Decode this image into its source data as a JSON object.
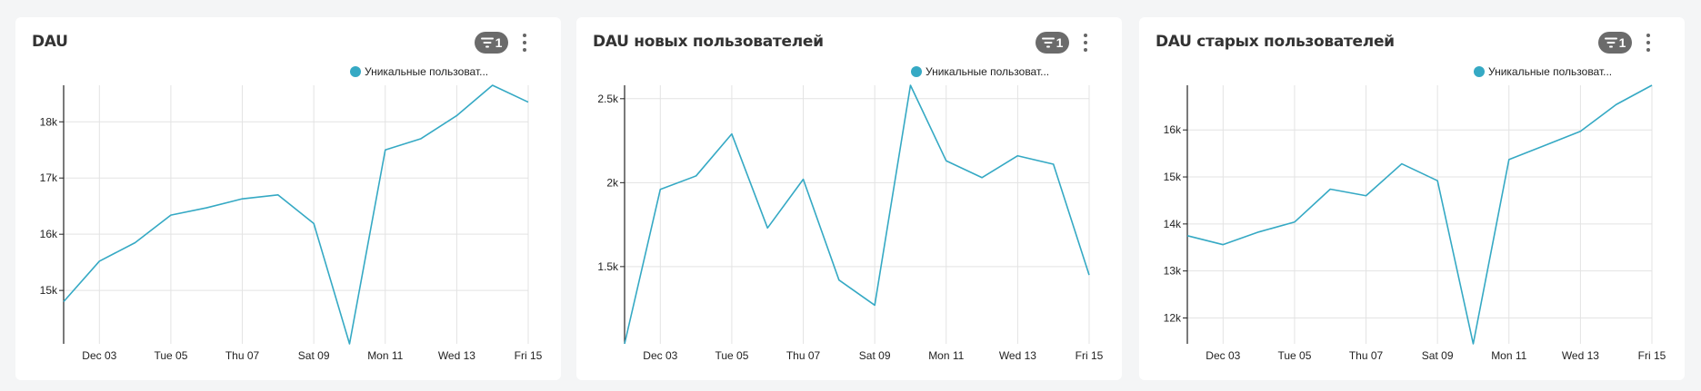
{
  "legend_label": "Уникальные пользоват...",
  "filter_count": "1",
  "colors": {
    "line": "#35a9c4",
    "grid": "#e3e3e3",
    "axis": "#222222"
  },
  "chart_data": [
    {
      "type": "line",
      "title": "DAU",
      "x_ticks": [
        "Dec 03",
        "Tue 05",
        "Thu 07",
        "Sat 09",
        "Mon 11",
        "Wed 13",
        "Fri 15"
      ],
      "x_tick_positions": [
        1,
        3,
        5,
        7,
        9,
        11,
        13
      ],
      "x_range": [
        0,
        13
      ],
      "y_ticks": [
        15000,
        16000,
        17000,
        18000
      ],
      "y_tick_labels": [
        "15k",
        "16k",
        "17k",
        "18k"
      ],
      "ylim": [
        14050,
        18650
      ],
      "series": [
        {
          "name": "Уникальные пользоват...",
          "values": [
            14800,
            15520,
            15850,
            16340,
            16470,
            16630,
            16700,
            16190,
            14050,
            17500,
            17700,
            18110,
            18650,
            18350
          ]
        }
      ]
    },
    {
      "type": "line",
      "title": "DAU новых пользователей",
      "x_ticks": [
        "Dec 03",
        "Tue 05",
        "Thu 07",
        "Sat 09",
        "Mon 11",
        "Wed 13",
        "Fri 15"
      ],
      "x_tick_positions": [
        1,
        3,
        5,
        7,
        9,
        11,
        13
      ],
      "x_range": [
        0,
        13
      ],
      "y_ticks": [
        1500,
        2000,
        2500
      ],
      "y_tick_labels": [
        "1.5k",
        "2k",
        "2.5k"
      ],
      "ylim": [
        1040,
        2580
      ],
      "series": [
        {
          "name": "Уникальные пользоват...",
          "values": [
            1040,
            1960,
            2040,
            2290,
            1730,
            2020,
            1420,
            1270,
            2580,
            2130,
            2030,
            2160,
            2110,
            1450
          ]
        }
      ]
    },
    {
      "type": "line",
      "title": "DAU старых пользователей",
      "x_ticks": [
        "Dec 03",
        "Tue 05",
        "Thu 07",
        "Sat 09",
        "Mon 11",
        "Wed 13",
        "Fri 15"
      ],
      "x_tick_positions": [
        1,
        3,
        5,
        7,
        9,
        11,
        13
      ],
      "x_range": [
        0,
        13
      ],
      "y_ticks": [
        12000,
        13000,
        14000,
        15000,
        16000
      ],
      "y_tick_labels": [
        "12k",
        "13k",
        "14k",
        "15k",
        "16k"
      ],
      "ylim": [
        11450,
        16950
      ],
      "series": [
        {
          "name": "Уникальные пользоват...",
          "values": [
            13750,
            13560,
            13830,
            14040,
            14740,
            14600,
            15280,
            14920,
            11450,
            15370,
            15670,
            15970,
            16540,
            16950
          ]
        }
      ]
    }
  ]
}
